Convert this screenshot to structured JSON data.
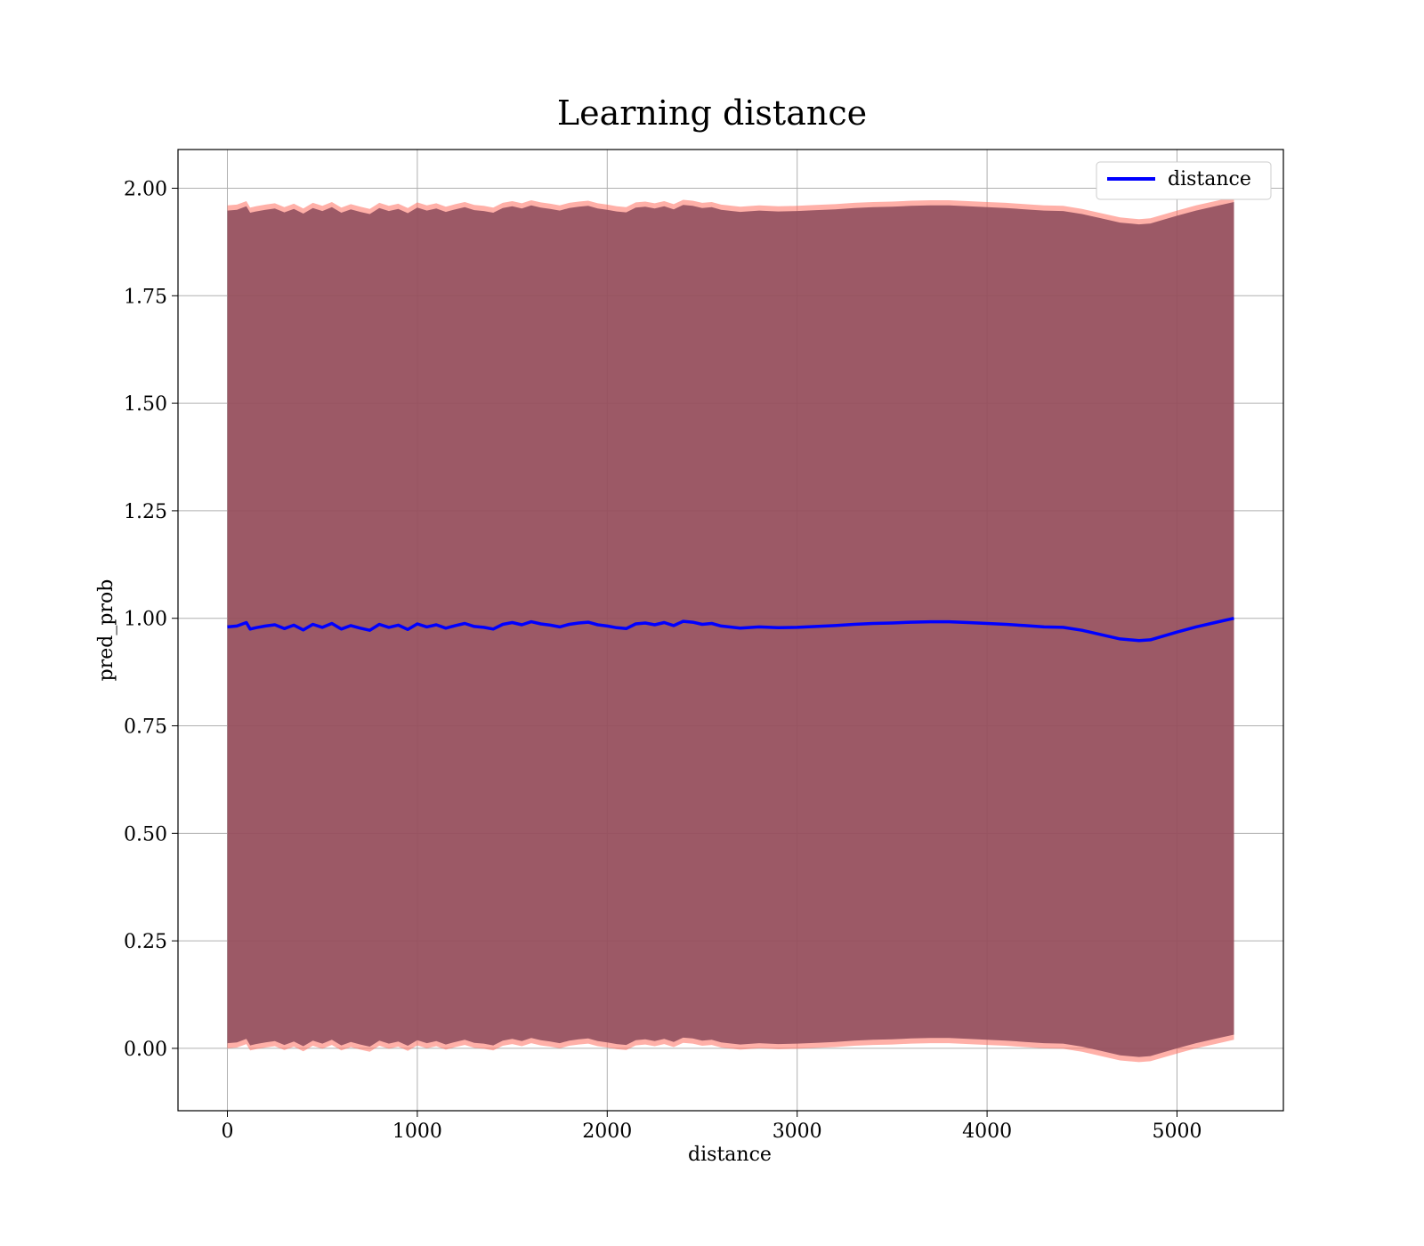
{
  "chart_data": {
    "type": "line",
    "title": "Learning distance",
    "xlabel": "distance",
    "ylabel": "pred_prob",
    "xlim": [
      -260,
      5560
    ],
    "ylim": [
      -0.145,
      2.09
    ],
    "xticks": [
      0,
      1000,
      2000,
      3000,
      4000,
      5000
    ],
    "xtick_labels": [
      "0",
      "1000",
      "2000",
      "3000",
      "4000",
      "5000"
    ],
    "yticks": [
      0.0,
      0.25,
      0.5,
      0.75,
      1.0,
      1.25,
      1.5,
      1.75,
      2.0
    ],
    "ytick_labels": [
      "0.00",
      "0.25",
      "0.50",
      "0.75",
      "1.00",
      "1.25",
      "1.50",
      "1.75",
      "2.00"
    ],
    "grid": true,
    "legend": {
      "position": "upper-right",
      "entries": [
        "distance"
      ]
    },
    "colors": {
      "line": "#0000ff",
      "band_inner": "#8b4a5a",
      "band_outer": "#ff6f61"
    },
    "series": [
      {
        "name": "distance",
        "x": [
          0,
          50,
          100,
          120,
          150,
          200,
          250,
          300,
          350,
          400,
          450,
          500,
          550,
          600,
          650,
          700,
          750,
          800,
          850,
          900,
          950,
          1000,
          1050,
          1100,
          1150,
          1200,
          1250,
          1300,
          1350,
          1400,
          1450,
          1500,
          1550,
          1600,
          1650,
          1700,
          1750,
          1800,
          1850,
          1900,
          1950,
          2000,
          2050,
          2100,
          2150,
          2200,
          2250,
          2300,
          2350,
          2400,
          2450,
          2500,
          2550,
          2600,
          2700,
          2800,
          2900,
          3000,
          3100,
          3200,
          3300,
          3400,
          3500,
          3600,
          3700,
          3800,
          3900,
          4000,
          4100,
          4200,
          4300,
          4400,
          4500,
          4600,
          4700,
          4800,
          4860,
          5000,
          5100,
          5200,
          5300
        ],
        "y": [
          0.98,
          0.982,
          0.99,
          0.975,
          0.978,
          0.982,
          0.985,
          0.976,
          0.984,
          0.973,
          0.986,
          0.979,
          0.988,
          0.975,
          0.983,
          0.977,
          0.972,
          0.986,
          0.979,
          0.984,
          0.974,
          0.987,
          0.98,
          0.985,
          0.977,
          0.983,
          0.988,
          0.981,
          0.979,
          0.975,
          0.986,
          0.99,
          0.985,
          0.992,
          0.987,
          0.984,
          0.98,
          0.986,
          0.989,
          0.991,
          0.985,
          0.982,
          0.978,
          0.976,
          0.987,
          0.989,
          0.985,
          0.99,
          0.983,
          0.993,
          0.991,
          0.986,
          0.988,
          0.982,
          0.977,
          0.98,
          0.978,
          0.979,
          0.981,
          0.983,
          0.986,
          0.988,
          0.989,
          0.991,
          0.992,
          0.992,
          0.99,
          0.988,
          0.986,
          0.983,
          0.98,
          0.979,
          0.972,
          0.962,
          0.952,
          0.948,
          0.95,
          0.968,
          0.98,
          0.99,
          1.0
        ],
        "band_halfwidth": 0.98
      }
    ]
  }
}
